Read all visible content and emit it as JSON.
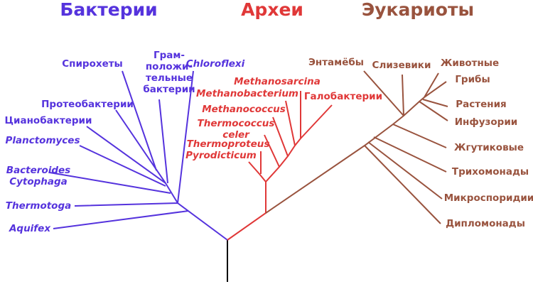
{
  "domains": [
    {
      "title": "Бактерии",
      "taxa": [
        [
          "Спирохеты"
        ],
        [
          "Грам-",
          "положи-",
          "тельные",
          "бактерии"
        ],
        [
          "Chloroflexi"
        ],
        [
          "Протеобактерии"
        ],
        [
          "Цианобактерии"
        ],
        [
          "Planctomyces"
        ],
        [
          "Bacteroides",
          "Cytophaga"
        ],
        [
          "Thermotoga"
        ],
        [
          "Aquifex"
        ]
      ]
    },
    {
      "title": "Археи",
      "taxa": [
        [
          "Methanosarcina"
        ],
        [
          "Methanobacterium"
        ],
        [
          "Галобактерии"
        ],
        [
          "Methanococcus"
        ],
        [
          "Thermococcus",
          "celer"
        ],
        [
          "Thermoproteus"
        ],
        [
          "Pyrodicticum"
        ]
      ]
    },
    {
      "title": "Эукариоты",
      "taxa": [
        [
          "Энтамёбы"
        ],
        [
          "Слизевики"
        ],
        [
          "Животные"
        ],
        [
          "Грибы"
        ],
        [
          "Растения"
        ],
        [
          "Инфузории"
        ],
        [
          "Жгутиковые"
        ],
        [
          "Трихомонады"
        ],
        [
          "Микроспоридии"
        ],
        [
          "Дипломонады"
        ]
      ]
    }
  ]
}
